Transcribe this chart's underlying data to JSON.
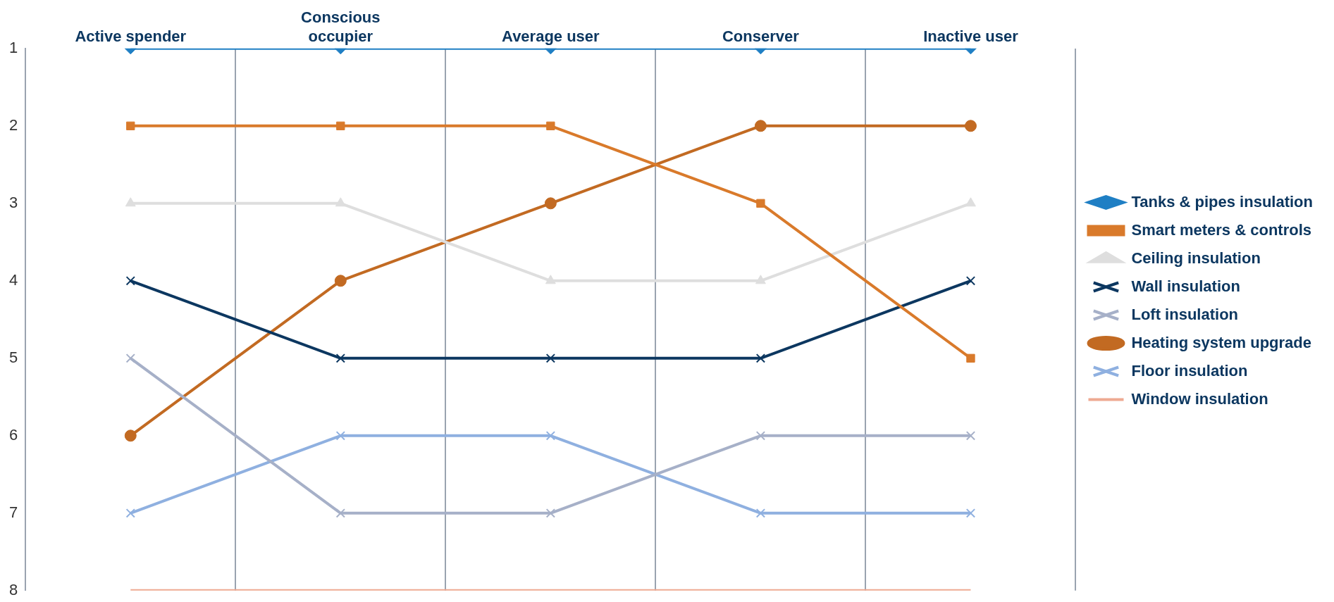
{
  "chart_data": {
    "type": "line",
    "categories": [
      "Active spender",
      "Conscious occupier",
      "Average user",
      "Conserver",
      "Inactive user"
    ],
    "ylim": [
      8,
      1
    ],
    "yticks": [
      1,
      2,
      3,
      4,
      5,
      6,
      7,
      8
    ],
    "grid": "x",
    "legend": "right",
    "series": [
      {
        "name": "Tanks & pipes insulation",
        "color": "#1f7fc4",
        "marker": "diamond",
        "values": [
          1,
          1,
          1,
          1,
          1
        ]
      },
      {
        "name": "Smart meters & controls",
        "color": "#d97a2b",
        "marker": "square",
        "values": [
          2,
          2,
          2,
          3,
          5
        ]
      },
      {
        "name": "Ceiling insulation",
        "color": "#dedede",
        "marker": "triangle",
        "values": [
          3,
          3,
          4,
          4,
          3
        ]
      },
      {
        "name": "Wall insulation",
        "color": "#0c3760",
        "marker": "cross",
        "values": [
          4,
          5,
          5,
          5,
          4
        ]
      },
      {
        "name": "Loft insulation",
        "color": "#a6b0c8",
        "marker": "cross",
        "values": [
          5,
          7,
          7,
          6,
          6
        ]
      },
      {
        "name": "Heating system upgrade",
        "color": "#c26a22",
        "marker": "circle",
        "values": [
          6,
          4,
          3,
          2,
          2
        ]
      },
      {
        "name": "Floor insulation",
        "color": "#8fb0e0",
        "marker": "cross",
        "values": [
          7,
          6,
          6,
          7,
          7
        ]
      },
      {
        "name": "Window insulation",
        "color": "#eeaa92",
        "marker": "none",
        "values": [
          8,
          8,
          8,
          8,
          8
        ]
      }
    ]
  }
}
